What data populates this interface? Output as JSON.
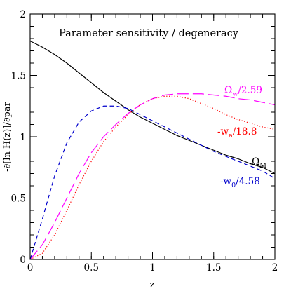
{
  "chart_data": {
    "type": "line",
    "title": "Parameter sensitivity / degeneracy",
    "xlabel": "z",
    "ylabel": "-∂[ln H(z)]/∂par",
    "xlim": [
      0,
      2
    ],
    "ylim": [
      0,
      2
    ],
    "x_ticks": [
      0,
      0.5,
      1,
      1.5,
      2
    ],
    "x_tick_labels": [
      "0",
      "0.5",
      "1",
      "1.5",
      "2"
    ],
    "y_ticks": [
      0,
      0.5,
      1,
      1.5,
      2
    ],
    "y_tick_labels": [
      "0",
      "0.5",
      "1",
      "1.5",
      "2"
    ],
    "grid": false,
    "x": [
      0,
      0.1,
      0.2,
      0.3,
      0.4,
      0.5,
      0.6,
      0.7,
      0.8,
      0.9,
      1.0,
      1.1,
      1.2,
      1.3,
      1.4,
      1.5,
      1.6,
      1.7,
      1.8,
      1.9,
      2.0
    ],
    "series": [
      {
        "id": "omega_m",
        "name": "Ω_M",
        "color": "#000000",
        "dash": "solid",
        "values": [
          1.78,
          1.73,
          1.67,
          1.6,
          1.52,
          1.44,
          1.36,
          1.29,
          1.22,
          1.16,
          1.11,
          1.06,
          1.01,
          0.97,
          0.93,
          0.89,
          0.85,
          0.82,
          0.78,
          0.75,
          0.7
        ]
      },
      {
        "id": "omega_w",
        "name": "Ω_w/2.59",
        "color": "#ff00ff",
        "dash": "long-dash",
        "values": [
          0,
          0.12,
          0.3,
          0.5,
          0.7,
          0.87,
          1.0,
          1.1,
          1.19,
          1.26,
          1.31,
          1.34,
          1.35,
          1.35,
          1.35,
          1.34,
          1.33,
          1.31,
          1.3,
          1.28,
          1.26
        ]
      },
      {
        "id": "w_a",
        "name": "-w_a/18.8",
        "color": "#ff0000",
        "dash": "dotted",
        "values": [
          0,
          0.05,
          0.2,
          0.4,
          0.61,
          0.8,
          0.96,
          1.08,
          1.18,
          1.26,
          1.31,
          1.33,
          1.33,
          1.31,
          1.27,
          1.23,
          1.18,
          1.14,
          1.11,
          1.08,
          1.06
        ]
      },
      {
        "id": "w_0",
        "name": "-w_0/4.58",
        "color": "#0000cc",
        "dash": "short-dash",
        "values": [
          0,
          0.33,
          0.68,
          0.95,
          1.12,
          1.21,
          1.25,
          1.25,
          1.23,
          1.18,
          1.13,
          1.08,
          1.03,
          0.98,
          0.93,
          0.88,
          0.84,
          0.8,
          0.76,
          0.72,
          0.66
        ]
      }
    ]
  }
}
